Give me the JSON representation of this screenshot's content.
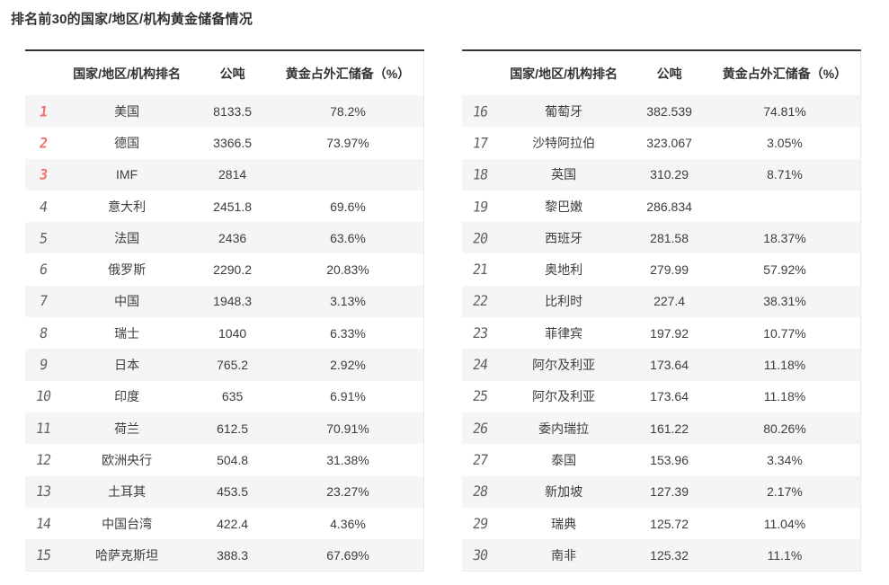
{
  "page": {
    "title": "排名前30的国家/地区/机构黄金储备情况"
  },
  "table_header": {
    "rank": "",
    "name": "国家/地区/机构排名",
    "tons": "公吨",
    "percent": "黄金占外汇储备（%）"
  },
  "left_table": {
    "rows": [
      {
        "rank": "1",
        "name": "美国",
        "tons": "8133.5",
        "percent": "78.2%"
      },
      {
        "rank": "2",
        "name": "德国",
        "tons": "3366.5",
        "percent": "73.97%"
      },
      {
        "rank": "3",
        "name": "IMF",
        "tons": "2814",
        "percent": ""
      },
      {
        "rank": "4",
        "name": "意大利",
        "tons": "2451.8",
        "percent": "69.6%"
      },
      {
        "rank": "5",
        "name": "法国",
        "tons": "2436",
        "percent": "63.6%"
      },
      {
        "rank": "6",
        "name": "俄罗斯",
        "tons": "2290.2",
        "percent": "20.83%"
      },
      {
        "rank": "7",
        "name": "中国",
        "tons": "1948.3",
        "percent": "3.13%"
      },
      {
        "rank": "8",
        "name": "瑞士",
        "tons": "1040",
        "percent": "6.33%"
      },
      {
        "rank": "9",
        "name": "日本",
        "tons": "765.2",
        "percent": "2.92%"
      },
      {
        "rank": "10",
        "name": "印度",
        "tons": "635",
        "percent": "6.91%"
      },
      {
        "rank": "11",
        "name": "荷兰",
        "tons": "612.5",
        "percent": "70.91%"
      },
      {
        "rank": "12",
        "name": "欧洲央行",
        "tons": "504.8",
        "percent": "31.38%"
      },
      {
        "rank": "13",
        "name": "土耳其",
        "tons": "453.5",
        "percent": "23.27%"
      },
      {
        "rank": "14",
        "name": "中国台湾",
        "tons": "422.4",
        "percent": "4.36%"
      },
      {
        "rank": "15",
        "name": "哈萨克斯坦",
        "tons": "388.3",
        "percent": "67.69%"
      }
    ]
  },
  "right_table": {
    "rows": [
      {
        "rank": "16",
        "name": "葡萄牙",
        "tons": "382.539",
        "percent": "74.81%"
      },
      {
        "rank": "17",
        "name": "沙特阿拉伯",
        "tons": "323.067",
        "percent": "3.05%"
      },
      {
        "rank": "18",
        "name": "英国",
        "tons": "310.29",
        "percent": "8.71%"
      },
      {
        "rank": "19",
        "name": "黎巴嫩",
        "tons": "286.834",
        "percent": ""
      },
      {
        "rank": "20",
        "name": "西班牙",
        "tons": "281.58",
        "percent": "18.37%"
      },
      {
        "rank": "21",
        "name": "奥地利",
        "tons": "279.99",
        "percent": "57.92%"
      },
      {
        "rank": "22",
        "name": "比利时",
        "tons": "227.4",
        "percent": "38.31%"
      },
      {
        "rank": "23",
        "name": "菲律宾",
        "tons": "197.92",
        "percent": "10.77%"
      },
      {
        "rank": "24",
        "name": "阿尔及利亚",
        "tons": "173.64",
        "percent": "11.18%"
      },
      {
        "rank": "25",
        "name": "阿尔及利亚",
        "tons": "173.64",
        "percent": "11.18%"
      },
      {
        "rank": "26",
        "name": "委内瑞拉",
        "tons": "161.22",
        "percent": "80.26%"
      },
      {
        "rank": "27",
        "name": "泰国",
        "tons": "153.96",
        "percent": "3.34%"
      },
      {
        "rank": "28",
        "name": "新加坡",
        "tons": "127.39",
        "percent": "2.17%"
      },
      {
        "rank": "29",
        "name": "瑞典",
        "tons": "125.72",
        "percent": "11.04%"
      },
      {
        "rank": "30",
        "name": "南非",
        "tons": "125.32",
        "percent": "11.1%"
      }
    ]
  },
  "colors": {
    "rank_top3": "#f0716c",
    "rank_default": "#5f5f5f",
    "stripe_bg": "#f5f5f5",
    "top_border": "#333333",
    "text": "#3d3d3d"
  }
}
